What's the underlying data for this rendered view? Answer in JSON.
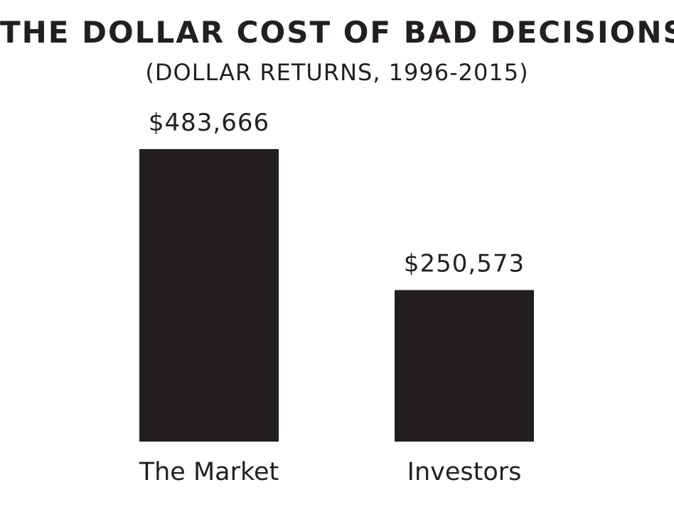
{
  "chart_data": {
    "type": "bar",
    "title": "THE DOLLAR COST OF BAD DECISIONS",
    "subtitle": "(DOLLAR RETURNS, 1996-2015)",
    "categories": [
      "The Market",
      "Investors"
    ],
    "values": [
      483666,
      250573
    ],
    "value_labels": [
      "$483,666",
      "$250,573"
    ],
    "ylim": [
      0,
      483666
    ],
    "grid": false,
    "bar_color": "#231f20"
  }
}
